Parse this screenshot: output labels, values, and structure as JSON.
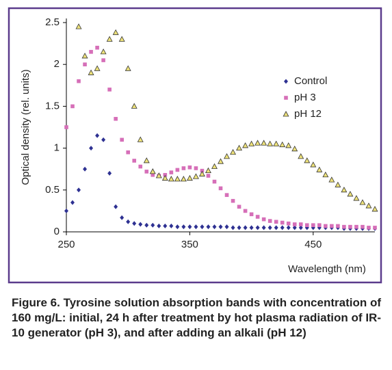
{
  "chart_data": {
    "type": "scatter",
    "x_label": "Wavelength (nm)",
    "y_label": "Optical density (rel. units)",
    "caption": "Figure 6. Tyrosine solution absorption bands with concentration of 160 mg/L: initial, 24 h after treatment by hot plasma radiation of IR-10 generator (pH 3), and after adding an alkali (pH 12)",
    "xlim": [
      250,
      500
    ],
    "xticks": [
      250,
      350,
      450
    ],
    "ylim": [
      0,
      2.5
    ],
    "yticks": [
      0,
      0.5,
      1,
      1.5,
      2,
      2.5
    ],
    "legend": "upper right",
    "x": [
      250,
      255,
      260,
      265,
      270,
      275,
      280,
      285,
      290,
      295,
      300,
      305,
      310,
      315,
      320,
      325,
      330,
      335,
      340,
      345,
      350,
      355,
      360,
      365,
      370,
      375,
      380,
      385,
      390,
      395,
      400,
      405,
      410,
      415,
      420,
      425,
      430,
      435,
      440,
      445,
      450,
      455,
      460,
      465,
      470,
      475,
      480,
      485,
      490,
      495,
      500
    ],
    "series": [
      {
        "name": "Control",
        "color": "#2e3192",
        "marker": "diamond",
        "values": [
          0.25,
          0.35,
          0.5,
          0.75,
          1.0,
          1.15,
          1.1,
          0.7,
          0.3,
          0.17,
          0.12,
          0.1,
          0.09,
          0.08,
          0.08,
          0.07,
          0.07,
          0.07,
          0.06,
          0.06,
          0.06,
          0.06,
          0.06,
          0.06,
          0.06,
          0.06,
          0.06,
          0.05,
          0.05,
          0.05,
          0.05,
          0.05,
          0.05,
          0.05,
          0.05,
          0.05,
          0.05,
          0.05,
          0.05,
          0.05,
          0.05,
          0.05,
          0.05,
          0.05,
          0.05,
          0.04,
          0.04,
          0.04,
          0.04,
          0.04,
          0.04
        ]
      },
      {
        "name": "pH 3",
        "color": "#d66fb8",
        "marker": "square",
        "values": [
          1.25,
          1.5,
          1.8,
          2.0,
          2.15,
          2.2,
          2.05,
          1.7,
          1.35,
          1.1,
          0.95,
          0.85,
          0.78,
          0.72,
          0.68,
          0.67,
          0.68,
          0.71,
          0.74,
          0.76,
          0.77,
          0.76,
          0.73,
          0.67,
          0.6,
          0.52,
          0.44,
          0.37,
          0.3,
          0.25,
          0.21,
          0.18,
          0.15,
          0.13,
          0.12,
          0.11,
          0.1,
          0.09,
          0.09,
          0.08,
          0.08,
          0.08,
          0.07,
          0.07,
          0.07,
          0.06,
          0.06,
          0.06,
          0.06,
          0.05,
          0.05
        ]
      },
      {
        "name": "pH 12",
        "color": "#eee27a",
        "marker": "triangle",
        "values": [
          null,
          null,
          2.45,
          2.1,
          1.9,
          1.95,
          2.15,
          2.3,
          2.38,
          2.3,
          1.95,
          1.5,
          1.1,
          0.85,
          0.72,
          0.67,
          0.64,
          0.63,
          0.63,
          0.63,
          0.64,
          0.66,
          0.69,
          0.73,
          0.78,
          0.84,
          0.9,
          0.95,
          1.0,
          1.03,
          1.05,
          1.06,
          1.06,
          1.05,
          1.05,
          1.04,
          1.03,
          0.99,
          0.9,
          0.85,
          0.8,
          0.74,
          0.68,
          0.62,
          0.56,
          0.5,
          0.45,
          0.4,
          0.35,
          0.31,
          0.27
        ]
      }
    ]
  }
}
